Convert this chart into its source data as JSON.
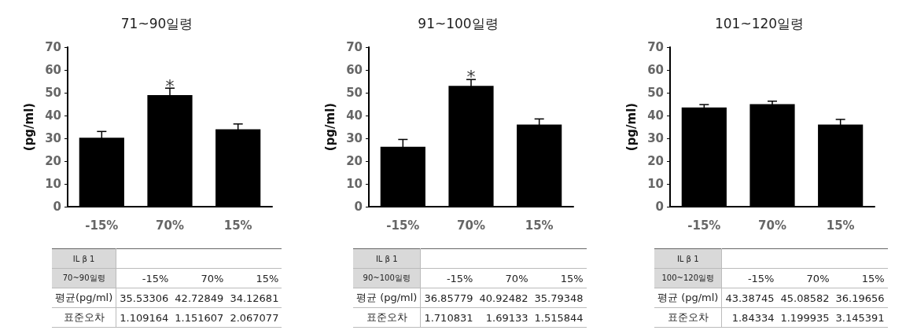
{
  "chart_data": [
    {
      "type": "bar",
      "title": "71~90일령",
      "ylabel": "(pg/ml)",
      "categories": [
        "-15%",
        "70%",
        "15%"
      ],
      "values": [
        30.3,
        49,
        34
      ],
      "errors": [
        2.7,
        3,
        2.3
      ],
      "color": "#000000",
      "ylim": [
        0,
        70
      ],
      "yticks": [
        0,
        10,
        20,
        30,
        40,
        50,
        60,
        70
      ],
      "grid": false,
      "annotations": [
        {
          "text": "*",
          "x": "70%",
          "y": 53
        },
        "IL β 1",
        "70~90일령",
        "-15%",
        "70%",
        "15%",
        "평균(pg/ml)",
        "35.53306",
        "42.72849",
        "34.12681",
        "표준오차",
        "1.109164",
        "1.151607",
        "2.067077"
      ]
    },
    {
      "type": "bar",
      "title": "91~100일령",
      "ylabel": "(pg/ml)",
      "categories": [
        "-15%",
        "70%",
        "15%"
      ],
      "values": [
        26.3,
        53,
        36
      ],
      "errors": [
        3.2,
        2.8,
        2.5
      ],
      "color": "#000000",
      "ylim": [
        0,
        70
      ],
      "yticks": [
        0,
        10,
        20,
        30,
        40,
        50,
        60,
        70
      ],
      "grid": false,
      "annotations": [
        {
          "text": "*",
          "x": "70%",
          "y": 57
        },
        "IL β 1",
        "90~100일령",
        "-15%",
        "70%",
        "15%",
        "평균 (pg/ml)",
        "36.85779",
        "40.92482",
        "35.79348",
        "표준오차",
        "1.710831",
        "1.69133",
        "1.515844"
      ]
    },
    {
      "type": "bar",
      "title": "101~120일령",
      "ylabel": "(pg/ml)",
      "categories": [
        "-15%",
        "70%",
        "15%"
      ],
      "values": [
        43.5,
        45,
        36
      ],
      "errors": [
        1.3,
        1.3,
        2.3
      ],
      "color": "#000000",
      "ylim": [
        0,
        70
      ],
      "yticks": [
        0,
        10,
        20,
        30,
        40,
        50,
        60,
        70
      ],
      "grid": false,
      "annotations": [
        "IL β 1",
        "100~120일령",
        "-15%",
        "70%",
        "15%",
        "평균 (pg/ml)",
        "43.38745",
        "45.08582",
        "36.19656",
        "표준오차",
        "1.84334",
        "1.199935",
        "3.145391"
      ]
    }
  ]
}
